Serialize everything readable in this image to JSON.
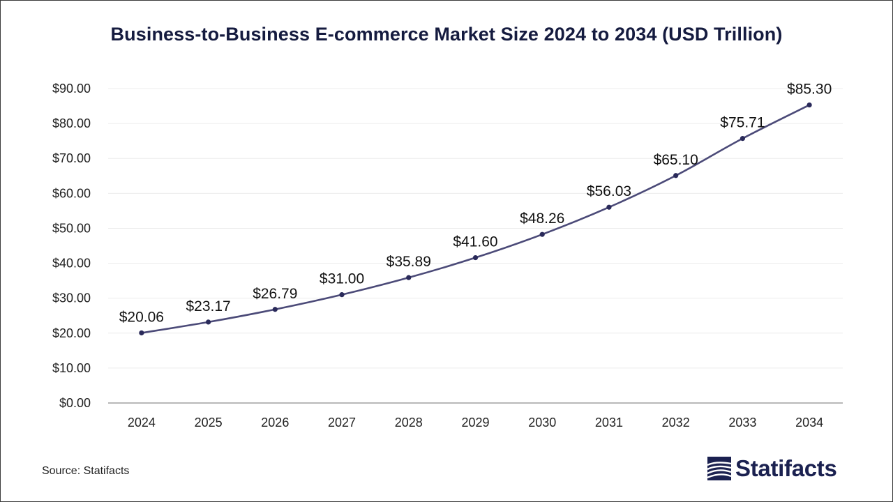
{
  "chart_data": {
    "type": "line",
    "title": "Business-to-Business E-commerce Market Size 2024 to 2034 (USD Trillion)",
    "xlabel": "",
    "ylabel": "",
    "categories": [
      "2024",
      "2025",
      "2026",
      "2027",
      "2028",
      "2029",
      "2030",
      "2031",
      "2032",
      "2033",
      "2034"
    ],
    "values": [
      20.06,
      23.17,
      26.79,
      31.0,
      35.89,
      41.6,
      48.26,
      56.03,
      65.1,
      75.71,
      85.3
    ],
    "data_labels": [
      "$20.06",
      "$23.17",
      "$26.79",
      "$31.00",
      "$35.89",
      "$41.60",
      "$48.26",
      "$56.03",
      "$65.10",
      "$75.71",
      "$85.30"
    ],
    "ylim": [
      0,
      90
    ],
    "yticks": [
      0,
      10,
      20,
      30,
      40,
      50,
      60,
      70,
      80,
      90
    ],
    "ytick_labels": [
      "$0.00",
      "$10.00",
      "$20.00",
      "$30.00",
      "$40.00",
      "$50.00",
      "$60.00",
      "$70.00",
      "$80.00",
      "$90.00"
    ],
    "grid": true,
    "line_color": "#4b4a78",
    "marker_color": "#2a2a5a"
  },
  "footer": {
    "source": "Source: Statifacts",
    "brand": "Statifacts"
  },
  "colors": {
    "title": "#151b3f",
    "brand": "#1b2150",
    "grid": "#ececec",
    "axis": "#a0a0a0"
  },
  "icons": {
    "brand_logo": "statifacts-logo-icon"
  }
}
